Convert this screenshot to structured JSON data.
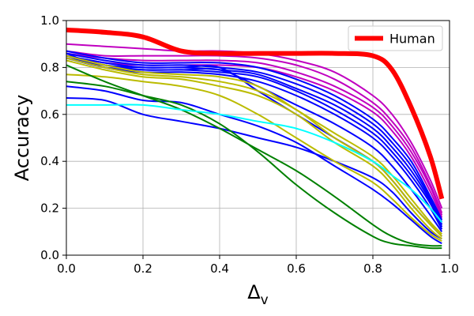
{
  "chart_data": {
    "type": "line",
    "xlabel": "Δ",
    "xlabel_sub": "v",
    "ylabel": "Accuracy",
    "xlim": [
      0.0,
      1.0
    ],
    "ylim": [
      0.0,
      1.0
    ],
    "grid": true,
    "legend": {
      "placement": "top-right",
      "entries": [
        "Human"
      ]
    },
    "xticks": [
      "0.0",
      "0.2",
      "0.4",
      "0.6",
      "0.8",
      "1.0"
    ],
    "yticks": [
      "0.0",
      "0.2",
      "0.4",
      "0.6",
      "0.8",
      "1.0"
    ],
    "x": [
      0.0,
      0.1,
      0.2,
      0.3,
      0.4,
      0.5,
      0.6,
      0.7,
      0.8,
      0.85,
      0.9,
      0.95,
      0.98
    ],
    "series": [
      {
        "name": "Human",
        "color": "#ff0000",
        "width": 6,
        "values": [
          0.96,
          0.95,
          0.93,
          0.87,
          0.86,
          0.86,
          0.86,
          0.86,
          0.85,
          0.79,
          0.63,
          0.42,
          0.24
        ]
      },
      {
        "name": "",
        "color": "#c000c0",
        "width": 2,
        "values": [
          0.9,
          0.89,
          0.88,
          0.87,
          0.87,
          0.86,
          0.83,
          0.78,
          0.68,
          0.6,
          0.48,
          0.32,
          0.2
        ]
      },
      {
        "name": "",
        "color": "#c000c0",
        "width": 2,
        "values": [
          0.87,
          0.85,
          0.85,
          0.85,
          0.85,
          0.84,
          0.81,
          0.75,
          0.65,
          0.57,
          0.46,
          0.3,
          0.18
        ]
      },
      {
        "name": "",
        "color": "#c000c0",
        "width": 2,
        "values": [
          0.86,
          0.84,
          0.83,
          0.83,
          0.83,
          0.82,
          0.78,
          0.72,
          0.63,
          0.55,
          0.44,
          0.29,
          0.17
        ]
      },
      {
        "name": "",
        "color": "#c000c0",
        "width": 2,
        "values": [
          0.85,
          0.82,
          0.81,
          0.81,
          0.81,
          0.8,
          0.76,
          0.7,
          0.61,
          0.53,
          0.42,
          0.27,
          0.16
        ]
      },
      {
        "name": "",
        "color": "#0000ff",
        "width": 2,
        "values": [
          0.87,
          0.84,
          0.82,
          0.82,
          0.82,
          0.8,
          0.75,
          0.68,
          0.58,
          0.5,
          0.4,
          0.25,
          0.15
        ]
      },
      {
        "name": "",
        "color": "#0000ff",
        "width": 2,
        "values": [
          0.86,
          0.83,
          0.81,
          0.81,
          0.8,
          0.78,
          0.73,
          0.66,
          0.56,
          0.48,
          0.38,
          0.24,
          0.14
        ]
      },
      {
        "name": "",
        "color": "#0000ff",
        "width": 2,
        "values": [
          0.85,
          0.82,
          0.8,
          0.8,
          0.79,
          0.77,
          0.71,
          0.64,
          0.54,
          0.46,
          0.36,
          0.23,
          0.13
        ]
      },
      {
        "name": "",
        "color": "#0000ff",
        "width": 2,
        "values": [
          0.84,
          0.81,
          0.79,
          0.79,
          0.78,
          0.76,
          0.7,
          0.62,
          0.52,
          0.44,
          0.34,
          0.22,
          0.12
        ]
      },
      {
        "name": "",
        "color": "#0000ff",
        "width": 2,
        "values": [
          0.86,
          0.8,
          0.78,
          0.78,
          0.77,
          0.74,
          0.68,
          0.6,
          0.5,
          0.42,
          0.32,
          0.2,
          0.11
        ]
      },
      {
        "name": "",
        "color": "#0000ff",
        "width": 2,
        "values": [
          0.84,
          0.8,
          0.79,
          0.79,
          0.79,
          0.72,
          0.64,
          0.56,
          0.46,
          0.38,
          0.28,
          0.17,
          0.1
        ]
      },
      {
        "name": "",
        "color": "#0000ff",
        "width": 2,
        "values": [
          0.85,
          0.81,
          0.8,
          0.8,
          0.8,
          0.7,
          0.6,
          0.5,
          0.4,
          0.32,
          0.22,
          0.13,
          0.08
        ]
      },
      {
        "name": "",
        "color": "#0000ff",
        "width": 2,
        "values": [
          0.72,
          0.7,
          0.66,
          0.65,
          0.6,
          0.55,
          0.48,
          0.38,
          0.28,
          0.22,
          0.15,
          0.08,
          0.05
        ]
      },
      {
        "name": "",
        "color": "#0000ff",
        "width": 2,
        "values": [
          0.67,
          0.66,
          0.6,
          0.57,
          0.54,
          0.5,
          0.46,
          0.4,
          0.33,
          0.27,
          0.18,
          0.1,
          0.07
        ]
      },
      {
        "name": "",
        "color": "#bbbb00",
        "width": 2,
        "values": [
          0.85,
          0.81,
          0.78,
          0.77,
          0.76,
          0.72,
          0.62,
          0.52,
          0.42,
          0.34,
          0.24,
          0.14,
          0.09
        ]
      },
      {
        "name": "",
        "color": "#bbbb00",
        "width": 2,
        "values": [
          0.84,
          0.8,
          0.77,
          0.76,
          0.74,
          0.7,
          0.62,
          0.5,
          0.4,
          0.32,
          0.22,
          0.13,
          0.08
        ]
      },
      {
        "name": "",
        "color": "#bbbb00",
        "width": 2,
        "values": [
          0.83,
          0.79,
          0.76,
          0.75,
          0.72,
          0.68,
          0.6,
          0.48,
          0.38,
          0.3,
          0.2,
          0.11,
          0.07
        ]
      },
      {
        "name": "",
        "color": "#bbbb00",
        "width": 2,
        "values": [
          0.77,
          0.76,
          0.74,
          0.72,
          0.68,
          0.6,
          0.5,
          0.4,
          0.31,
          0.24,
          0.16,
          0.09,
          0.06
        ]
      },
      {
        "name": "",
        "color": "#008000",
        "width": 2,
        "values": [
          0.81,
          0.74,
          0.68,
          0.62,
          0.54,
          0.45,
          0.36,
          0.25,
          0.13,
          0.08,
          0.05,
          0.04,
          0.04
        ]
      },
      {
        "name": "",
        "color": "#008000",
        "width": 2,
        "values": [
          0.74,
          0.72,
          0.68,
          0.64,
          0.56,
          0.44,
          0.3,
          0.18,
          0.08,
          0.05,
          0.04,
          0.03,
          0.03
        ]
      },
      {
        "name": "",
        "color": "#00ffff",
        "width": 2,
        "values": [
          0.64,
          0.64,
          0.64,
          0.62,
          0.6,
          0.57,
          0.54,
          0.48,
          0.4,
          0.34,
          0.28,
          0.2,
          0.14
        ]
      }
    ]
  }
}
